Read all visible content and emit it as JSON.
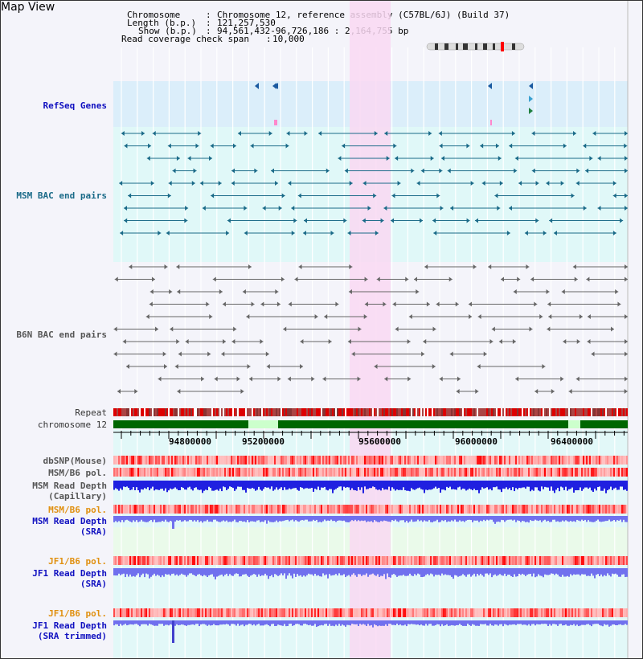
{
  "view": {
    "title": "Map View",
    "chromosome_key": "Chromosome",
    "chromosome_value": "Chromosome 12, reference assembly (C57BL/6J) (Build 37)",
    "length_key": "Length (b.p.)",
    "length_value": "121,257,530",
    "show_key": "Show (b.p.)",
    "show_value": "94,561,432-96,726,186 : 2,164,755 bp",
    "coverage_key": "Read coverage check span",
    "coverage_value": "10,000"
  },
  "tracks": {
    "refseq": "RefSeq Genes",
    "msm_bac": "MSM BAC end pairs",
    "b6n_bac": "B6N BAC end pairs",
    "repeat": "Repeat",
    "chromosome": "chromosome 12",
    "dbsnp": "dbSNP(Mouse)",
    "msm_b6_pol_1": "MSM/B6 pol.",
    "msm_read_depth_cap_1": "MSM Read Depth",
    "msm_read_depth_cap_2": "(Capillary)",
    "msm_b6_pol_2": "MSM/B6 pol.",
    "msm_read_depth_sra_1": "MSM Read Depth",
    "msm_read_depth_sra_2": "(SRA)",
    "jf1_b6_pol_1": "JF1/B6 pol.",
    "jf1_read_depth_sra_1": "JF1 Read Depth",
    "jf1_read_depth_sra_2": "(SRA)",
    "jf1_b6_pol_2": "JF1/B6 pol.",
    "jf1_read_depth_trim_1": "JF1 Read Depth",
    "jf1_read_depth_trim_2": "(SRA trimmed)"
  },
  "axis": {
    "ticks": [
      "94800000",
      "95200000",
      "95600000",
      "96000000",
      "96400000"
    ]
  },
  "colors": {
    "refseq_bg": "#dbeefa",
    "msm_bg": "#e0f8f8",
    "highlight": "#f9d8f2",
    "feature_teal": "#1a6a88",
    "feature_gray": "#666666",
    "chromosome_green": "#006600",
    "depth_blue": "#2020e0",
    "depth_light_blue": "#7070ee"
  }
}
